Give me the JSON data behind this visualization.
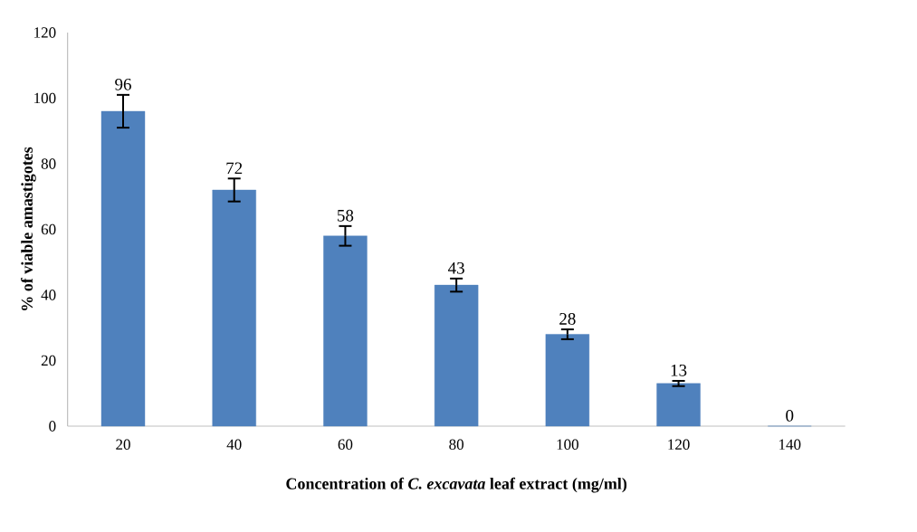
{
  "chart_data": {
    "type": "bar",
    "xlabel": "Concentration of *C. excavata* leaf extract (mg/ml)",
    "ylabel": "% of viable amastigotes",
    "categories": [
      "20",
      "40",
      "60",
      "80",
      "100",
      "120",
      "140"
    ],
    "values": [
      96,
      72,
      58,
      43,
      28,
      13,
      0
    ],
    "errors": [
      5,
      3.5,
      3,
      2,
      1.5,
      0.8,
      null
    ],
    "color": "#4f81bd",
    "ylim": [
      0,
      120
    ],
    "yticks": [
      0,
      20,
      40,
      60,
      80,
      100,
      120
    ],
    "data_labels": true,
    "grid": false
  }
}
